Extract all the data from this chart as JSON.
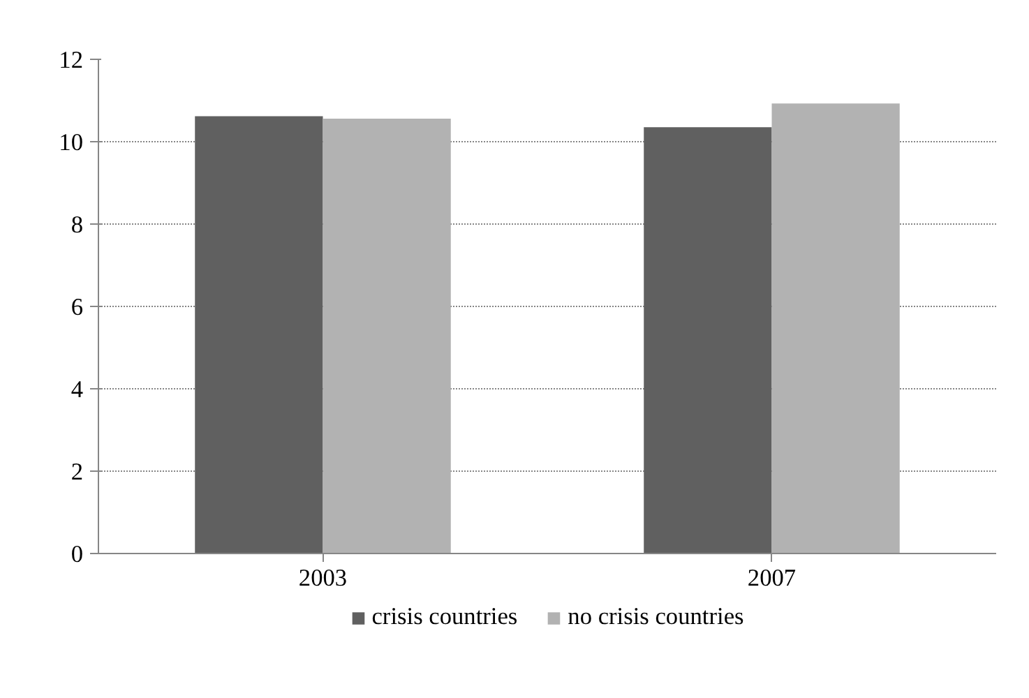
{
  "chart_data": {
    "type": "bar",
    "categories": [
      "2003",
      "2007"
    ],
    "series": [
      {
        "name": "crisis countries",
        "color": "#606060",
        "values": [
          10.62,
          10.35
        ]
      },
      {
        "name": "no crisis countries",
        "color": "#b2b2b2",
        "values": [
          10.56,
          10.93
        ]
      }
    ],
    "ylim": [
      0,
      12
    ],
    "yticks": [
      0,
      2,
      4,
      6,
      8,
      10,
      12
    ],
    "grid": "y",
    "legend": "bottom"
  }
}
